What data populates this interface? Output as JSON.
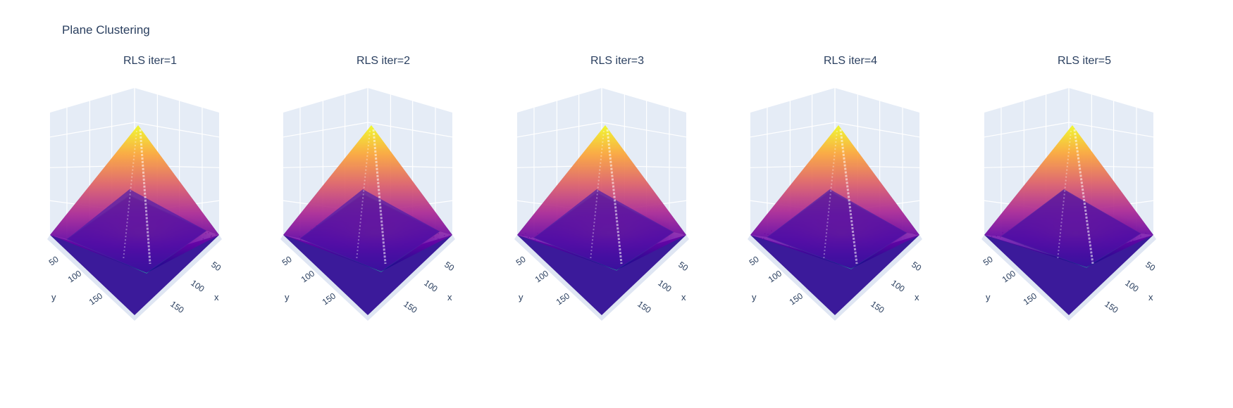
{
  "figure": {
    "title": "Plane Clustering"
  },
  "chart_data": [
    {
      "type": "surface3d",
      "title": "RLS iter=1",
      "xlabel": "x",
      "ylabel": "y",
      "xticks": [
        "50",
        "100",
        "150"
      ],
      "yticks": [
        "50",
        "100",
        "150"
      ],
      "x_range": [
        0,
        200
      ],
      "y_range": [
        0,
        200
      ],
      "colorscale": "plasma",
      "grid": true
    },
    {
      "type": "surface3d",
      "title": "RLS iter=2",
      "xlabel": "x",
      "ylabel": "y",
      "xticks": [
        "50",
        "100",
        "150"
      ],
      "yticks": [
        "50",
        "100",
        "150"
      ],
      "x_range": [
        0,
        200
      ],
      "y_range": [
        0,
        200
      ],
      "colorscale": "plasma",
      "grid": true
    },
    {
      "type": "surface3d",
      "title": "RLS iter=3",
      "xlabel": "x",
      "ylabel": "y",
      "xticks": [
        "50",
        "100",
        "150"
      ],
      "yticks": [
        "50",
        "100",
        "150"
      ],
      "x_range": [
        0,
        200
      ],
      "y_range": [
        0,
        200
      ],
      "colorscale": "plasma",
      "grid": true
    },
    {
      "type": "surface3d",
      "title": "RLS iter=4",
      "xlabel": "x",
      "ylabel": "y",
      "xticks": [
        "50",
        "100",
        "150"
      ],
      "yticks": [
        "50",
        "100",
        "150"
      ],
      "x_range": [
        0,
        200
      ],
      "y_range": [
        0,
        200
      ],
      "colorscale": "plasma",
      "grid": true
    },
    {
      "type": "surface3d",
      "title": "RLS iter=5",
      "xlabel": "x",
      "ylabel": "y",
      "xticks": [
        "50",
        "100",
        "150"
      ],
      "yticks": [
        "50",
        "100",
        "150"
      ],
      "x_range": [
        0,
        200
      ],
      "y_range": [
        0,
        200
      ],
      "colorscale": "plasma",
      "grid": true
    }
  ],
  "colors": {
    "scene_bg": "#e5ecf6",
    "grid": "#ffffff",
    "floor": "#3b1a9a",
    "floor_dark": "#2d0f8a",
    "boundary": "#2dd4a0",
    "text": "#2a3f5f",
    "plasma": [
      "#0d0887",
      "#6a00a8",
      "#b12a90",
      "#e16462",
      "#fca636",
      "#f0f921"
    ]
  }
}
